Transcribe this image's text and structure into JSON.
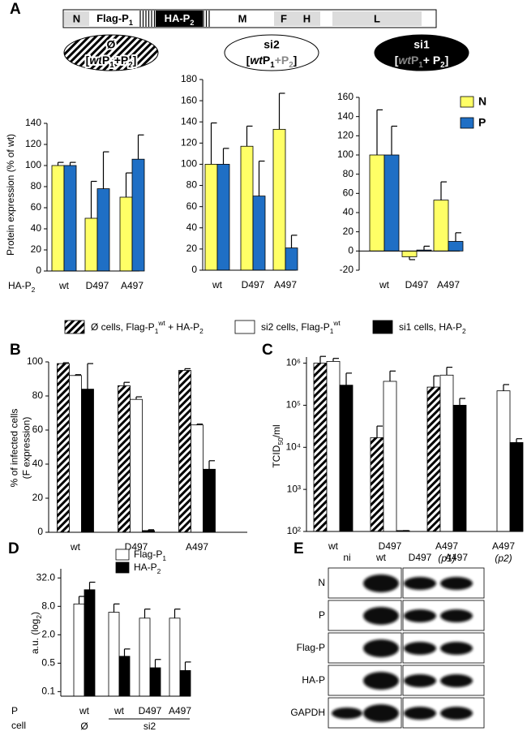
{
  "panels": [
    "A",
    "B",
    "C",
    "D",
    "E"
  ],
  "construct": {
    "segments": [
      {
        "label": "N",
        "style": "shaded"
      },
      {
        "label": [
          {
            "text": "Flag-P"
          },
          {
            "text": "1",
            "style": "sub"
          }
        ],
        "style": "plain"
      },
      {
        "label": [
          {
            "text": "HA-P"
          },
          {
            "text": "2",
            "style": "sub"
          }
        ],
        "style": "dark"
      },
      {
        "label": "M",
        "style": "plain"
      },
      {
        "label": "F",
        "style": "shaded"
      },
      {
        "label": "H",
        "style": "shaded"
      },
      {
        "label": "L",
        "style": "shaded"
      }
    ]
  },
  "cell_legend": [
    {
      "pattern": "hatched",
      "label": [
        {
          "text": "Ø cells, Flag-P"
        },
        {
          "text": "1",
          "style": "sub"
        },
        {
          "text": "wt",
          "style": "sup"
        },
        {
          "text": " + HA-P"
        },
        {
          "text": "2",
          "style": "sub"
        }
      ]
    },
    {
      "color": "#ffffff",
      "label": [
        {
          "text": "si2  cells, Flag-P"
        },
        {
          "text": "1",
          "style": "sub"
        },
        {
          "text": "wt",
          "style": "sup"
        }
      ]
    },
    {
      "color": "#000000",
      "label": [
        {
          "text": "si1  cells, HA-P"
        },
        {
          "text": "2",
          "style": "sub"
        }
      ]
    }
  ],
  "chart_data": [
    {
      "type": "bar",
      "panel": 0,
      "header": {
        "title": "Ø",
        "style": "hatched",
        "subtitle": [
          {
            "text": "["
          },
          {
            "text": "wt",
            "style": "italic"
          },
          {
            "text": "P"
          },
          {
            "text": "1",
            "style": "sub"
          },
          {
            "text": "+P"
          },
          {
            "text": "2",
            "style": "sub"
          },
          {
            "text": "]"
          }
        ]
      },
      "ylabel": [
        "Protein expression (% of wt)"
      ],
      "category_axis_label": [
        {
          "text": "HA-P"
        },
        {
          "text": "2",
          "style": "sub"
        }
      ],
      "categories": [
        "wt",
        "D497",
        "A497"
      ],
      "series": [
        {
          "color": "#ffff66",
          "values": [
            100,
            50,
            70
          ],
          "errors": [
            3,
            35,
            23
          ]
        },
        {
          "color": "#1f6fc5",
          "values": [
            100,
            78,
            106
          ],
          "errors": [
            3,
            35,
            23
          ]
        }
      ],
      "ylim": [
        0,
        140
      ],
      "yticks": [
        0,
        20,
        40,
        60,
        80,
        100,
        120,
        140
      ]
    },
    {
      "type": "bar",
      "panel": 0,
      "header": {
        "title": "si2",
        "style": "white",
        "subtitle": [
          {
            "text": "["
          },
          {
            "text": "wt",
            "style": "italic"
          },
          {
            "text": "P"
          },
          {
            "text": "1",
            "style": "sub"
          },
          {
            "text": "+P",
            "style": "gray"
          },
          {
            "text": "2",
            "style": "sub gray"
          },
          {
            "text": "]"
          }
        ]
      },
      "categories": [
        "wt",
        "D497",
        "A497"
      ],
      "series": [
        {
          "color": "#ffff66",
          "values": [
            100,
            117,
            133
          ],
          "errors": [
            39,
            19,
            34
          ]
        },
        {
          "color": "#1f6fc5",
          "values": [
            100,
            70,
            21
          ],
          "errors": [
            15,
            33,
            12
          ]
        }
      ],
      "ylim": [
        0,
        180
      ],
      "yticks": [
        0,
        20,
        40,
        60,
        80,
        100,
        120,
        140,
        160,
        180
      ]
    },
    {
      "type": "bar",
      "panel": 0,
      "header": {
        "title": "si1",
        "style": "black",
        "subtitle": [
          {
            "text": "["
          },
          {
            "text": "wt",
            "style": "italic gray"
          },
          {
            "text": "P",
            "style": "gray"
          },
          {
            "text": "1",
            "style": "sub gray"
          },
          {
            "text": "+ P"
          },
          {
            "text": "2",
            "style": "sub"
          },
          {
            "text": "]"
          }
        ]
      },
      "categories": [
        "wt",
        "D497",
        "A497"
      ],
      "series": [
        {
          "name": "N",
          "color": "#ffff66",
          "values": [
            100,
            -6,
            53
          ],
          "errors": [
            47,
            3,
            19
          ]
        },
        {
          "name": "P",
          "color": "#1f6fc5",
          "values": [
            100,
            1,
            10
          ],
          "errors": [
            30,
            4,
            9
          ]
        }
      ],
      "legend": "upper right",
      "ylim": [
        -20,
        160
      ],
      "yticks": [
        -20,
        0,
        20,
        40,
        60,
        80,
        100,
        120,
        140,
        160
      ]
    },
    {
      "type": "bar",
      "panel": 1,
      "ylabel": [
        "% of  infected cells",
        "(F expression)"
      ],
      "categories": [
        "wt",
        "D497",
        "A497"
      ],
      "series": [
        {
          "pattern": "hatched",
          "values": [
            99,
            86,
            95
          ],
          "errors": [
            0.5,
            2,
            1
          ]
        },
        {
          "color": "#ffffff",
          "values": [
            92,
            78,
            63
          ],
          "errors": [
            0.5,
            1.5,
            0.5
          ]
        },
        {
          "color": "#000000",
          "values": [
            84,
            1,
            37
          ],
          "errors": [
            15,
            0.5,
            5
          ]
        }
      ],
      "ylim": [
        0,
        100
      ],
      "yticks": [
        0,
        20,
        40,
        60,
        80,
        100
      ]
    },
    {
      "type": "bar",
      "panel": 2,
      "log": true,
      "ylabel": [
        [
          {
            "text": "TCID"
          },
          {
            "text": "50",
            "style": "sub"
          },
          {
            "text": "/ml"
          }
        ]
      ],
      "categories": [
        "wt",
        "D497",
        "A497",
        "A497"
      ],
      "category_notes": [
        null,
        null,
        "(p1)",
        "(p2)"
      ],
      "series": [
        {
          "pattern": "hatched",
          "values": [
            1000000,
            17000,
            270000,
            null
          ],
          "errors": [
            450000,
            15000,
            230000,
            null
          ]
        },
        {
          "color": "#ffffff",
          "values": [
            1100000,
            370000,
            520000,
            220000
          ],
          "errors": [
            200000,
            280000,
            280000,
            90000
          ]
        },
        {
          "color": "#000000",
          "values": [
            300000,
            105,
            100000,
            13000
          ],
          "errors": [
            280000,
            0,
            45000,
            3000
          ]
        }
      ],
      "ylim": [
        100,
        1400000
      ],
      "yticks": [
        {
          "value": 100,
          "label": "10²"
        },
        {
          "value": 1000,
          "label": "10³"
        },
        {
          "value": 10000,
          "label": "10⁴"
        },
        {
          "value": 100000,
          "label": "10⁵"
        },
        {
          "value": 1000000,
          "label": "10⁶"
        }
      ]
    },
    {
      "type": "bar",
      "panel": 3,
      "log": true,
      "ylabel": [
        [
          {
            "text": "a.u. (log"
          },
          {
            "text": "2",
            "style": "sub"
          },
          {
            "text": ")"
          }
        ]
      ],
      "row_labels": [
        "P",
        "cell"
      ],
      "categories": [
        "wt",
        "wt",
        "D497",
        "A497"
      ],
      "category_groups": [
        "Ø",
        "si2"
      ],
      "category_group_of": [
        0,
        1,
        1,
        1
      ],
      "series": [
        {
          "name": [
            {
              "text": "Flag-P"
            },
            {
              "text": "1",
              "style": "sub"
            }
          ],
          "color": "#ffffff",
          "values": [
            9,
            6,
            4.5,
            4.5
          ],
          "errors": [
            4,
            3,
            2.5,
            2.5
          ]
        },
        {
          "name": [
            {
              "text": "HA-P"
            },
            {
              "text": "2",
              "style": "sub"
            }
          ],
          "color": "#000000",
          "values": [
            18,
            0.7,
            0.4,
            0.35
          ],
          "errors": [
            8,
            0.3,
            0.2,
            0.18
          ]
        }
      ],
      "legend": "upper right",
      "ylim": [
        0.1,
        50
      ],
      "yticks": [
        {
          "value": 0.125,
          "label": "0.1"
        },
        0.5,
        {
          "value": 2,
          "label": "2.0"
        },
        {
          "value": 8,
          "label": "8.0"
        },
        {
          "value": 32,
          "label": "32.0"
        }
      ]
    }
  ],
  "blot": {
    "columns": [
      "ni",
      "wt",
      "D497",
      "A497"
    ],
    "rows": [
      "N",
      "P",
      "Flag-P",
      "HA-P",
      "GAPDH"
    ]
  }
}
